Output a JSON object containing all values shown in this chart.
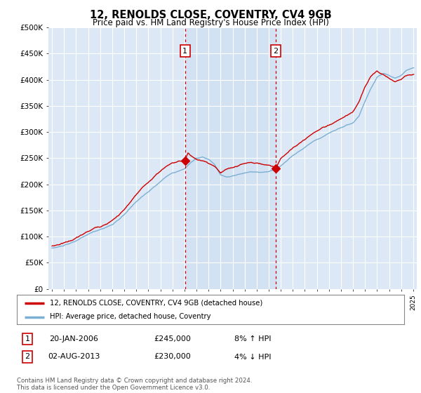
{
  "title": "12, RENOLDS CLOSE, COVENTRY, CV4 9GB",
  "subtitle": "Price paid vs. HM Land Registry's House Price Index (HPI)",
  "background_color": "#ffffff",
  "plot_bg_color": "#dce8f5",
  "grid_color": "#ffffff",
  "ylim": [
    0,
    500000
  ],
  "yticks": [
    0,
    50000,
    100000,
    150000,
    200000,
    250000,
    300000,
    350000,
    400000,
    450000,
    500000
  ],
  "ytick_labels": [
    "£0",
    "£50K",
    "£100K",
    "£150K",
    "£200K",
    "£250K",
    "£300K",
    "£350K",
    "£400K",
    "£450K",
    "£500K"
  ],
  "x_start_year": 1995,
  "x_end_year": 2025,
  "sale1_date": 2006.05,
  "sale1_price": 245000,
  "sale1_label": "1",
  "sale1_info": "20-JAN-2006",
  "sale1_pct": "8%",
  "sale1_dir": "↑",
  "sale2_date": 2013.58,
  "sale2_price": 230000,
  "sale2_label": "2",
  "sale2_info": "02-AUG-2013",
  "sale2_pct": "4%",
  "sale2_dir": "↓",
  "hpi_line_color": "#7bafd4",
  "price_line_color": "#cc0000",
  "sale_marker_color": "#cc0000",
  "sale_vline_color": "#cc0000",
  "sale_box_color": "#cc0000",
  "shade_color": "#ccdff0",
  "legend_entry1": "12, RENOLDS CLOSE, COVENTRY, CV4 9GB (detached house)",
  "legend_entry2": "HPI: Average price, detached house, Coventry",
  "footer": "Contains HM Land Registry data © Crown copyright and database right 2024.\nThis data is licensed under the Open Government Licence v3.0."
}
